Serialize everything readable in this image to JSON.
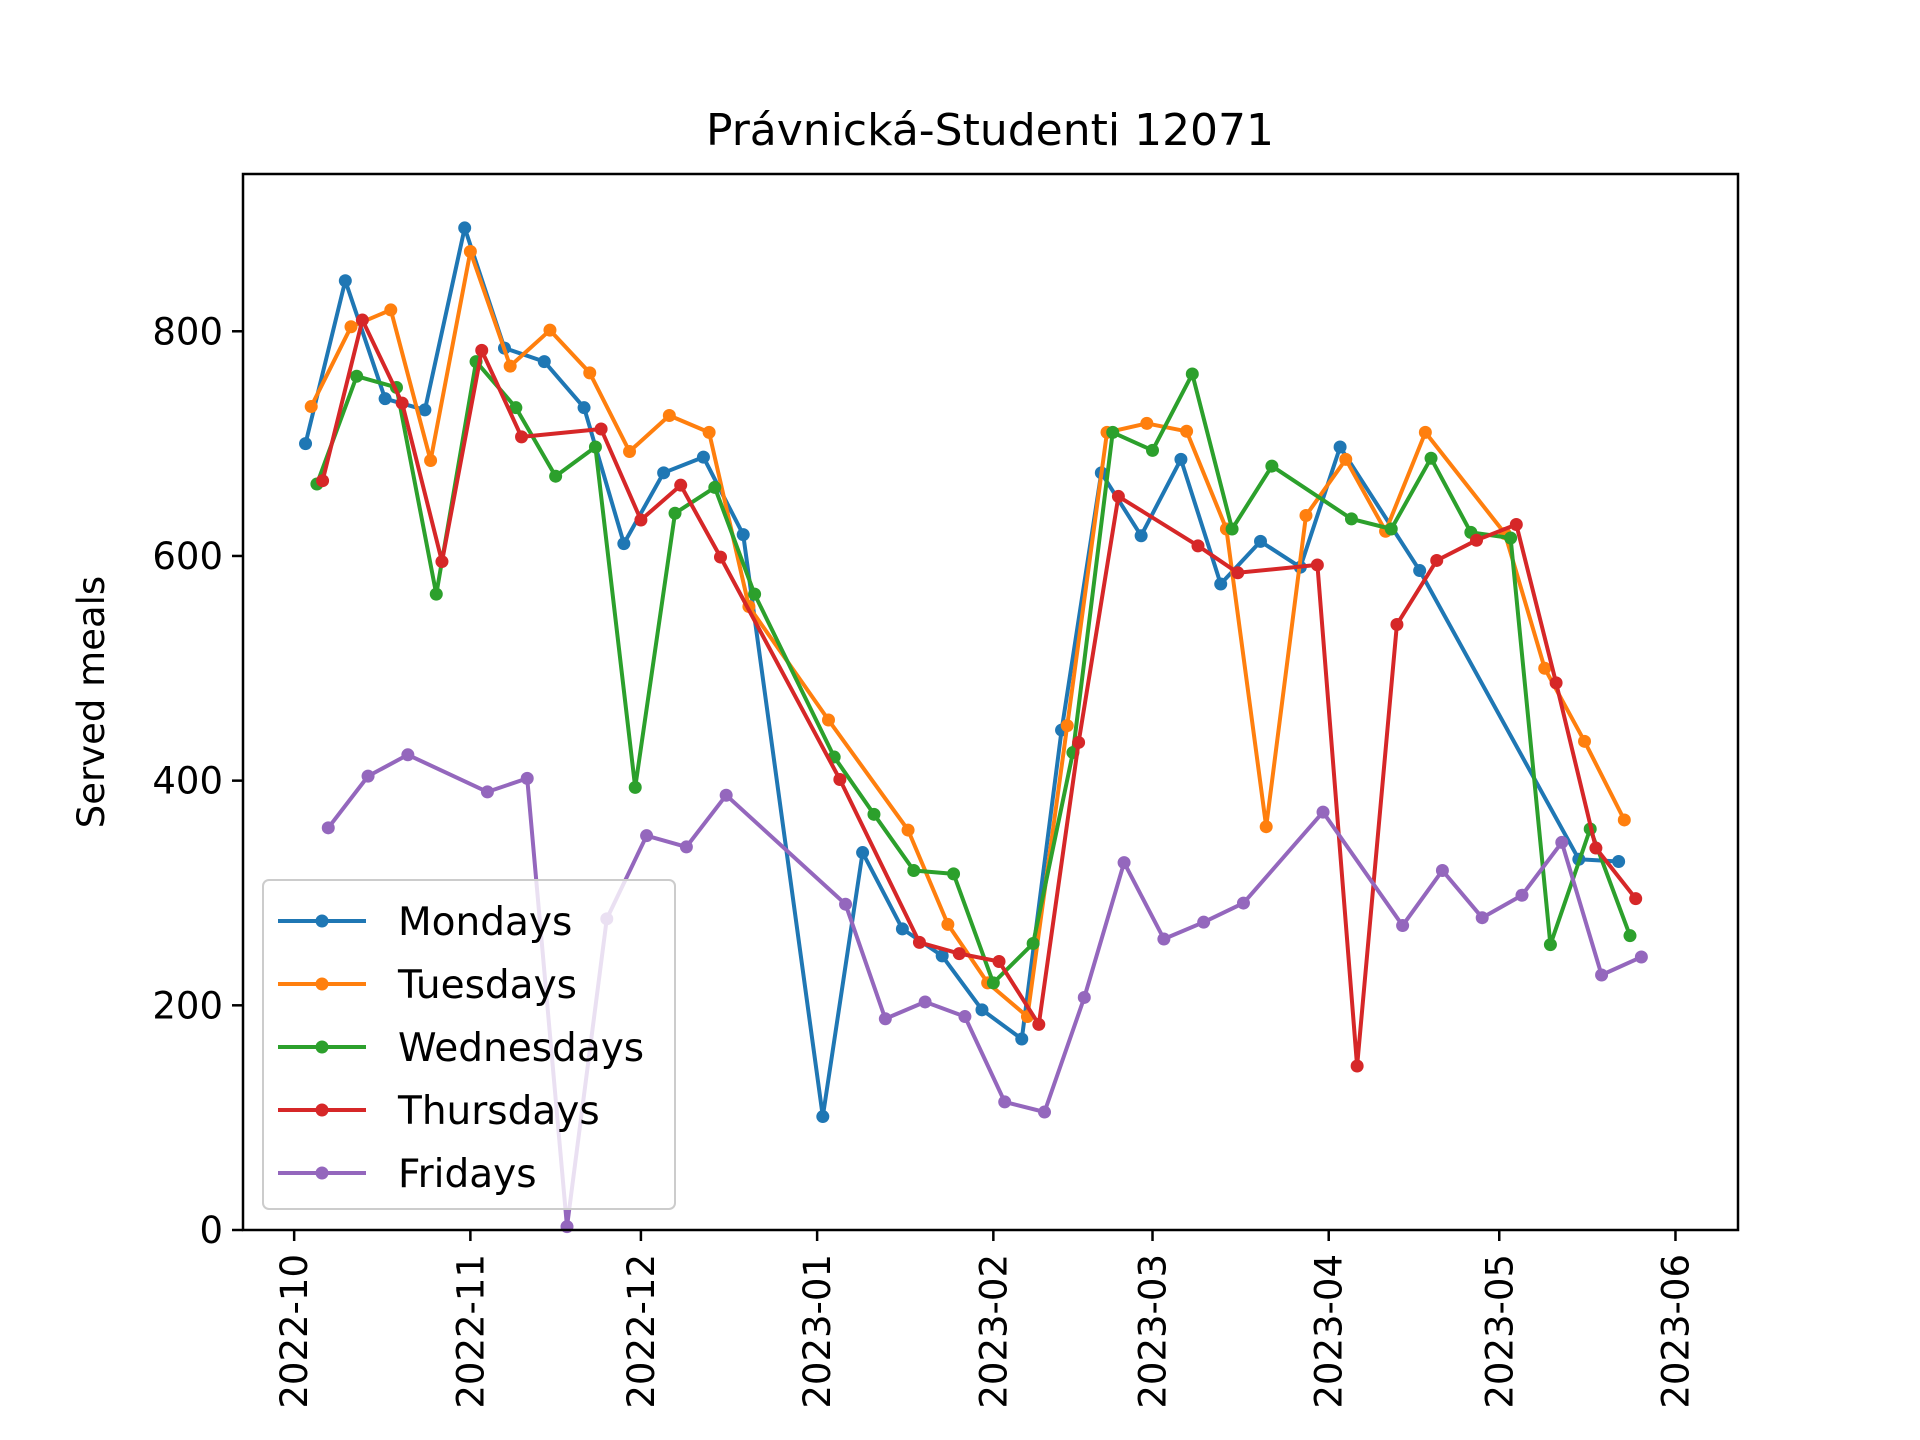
{
  "chart_data": {
    "type": "line",
    "title": "Právnická-Studenti 12071",
    "xlabel": "",
    "ylabel": "Served meals",
    "ylim": [
      0,
      940
    ],
    "xlim": [
      "2022-09-22",
      "2023-06-12"
    ],
    "grid": false,
    "legend_position": "lower-left",
    "yticks": [
      0,
      200,
      400,
      600,
      800
    ],
    "xticks": [
      "2022-10-01",
      "2022-11-01",
      "2022-12-01",
      "2023-01-01",
      "2023-02-01",
      "2023-03-01",
      "2023-04-01",
      "2023-05-01",
      "2023-06-01"
    ],
    "xtick_labels": [
      "2022-10",
      "2022-11",
      "2022-12",
      "2023-01",
      "2023-02",
      "2023-03",
      "2023-04",
      "2023-05",
      "2023-06"
    ],
    "series": [
      {
        "name": "Mondays",
        "color": "#1f77b4",
        "points": [
          [
            "2022-10-03",
            700
          ],
          [
            "2022-10-10",
            845
          ],
          [
            "2022-10-17",
            740
          ],
          [
            "2022-10-24",
            730
          ],
          [
            "2022-10-31",
            892
          ],
          [
            "2022-11-07",
            785
          ],
          [
            "2022-11-14",
            773
          ],
          [
            "2022-11-21",
            732
          ],
          [
            "2022-11-28",
            611
          ],
          [
            "2022-12-05",
            674
          ],
          [
            "2022-12-12",
            688
          ],
          [
            "2022-12-19",
            619
          ],
          [
            "2023-01-02",
            101
          ],
          [
            "2023-01-09",
            336
          ],
          [
            "2023-01-16",
            268
          ],
          [
            "2023-01-23",
            244
          ],
          [
            "2023-01-30",
            196
          ],
          [
            "2023-02-06",
            170
          ],
          [
            "2023-02-13",
            445
          ],
          [
            "2023-02-20",
            674
          ],
          [
            "2023-02-27",
            618
          ],
          [
            "2023-03-06",
            686
          ],
          [
            "2023-03-13",
            575
          ],
          [
            "2023-03-20",
            613
          ],
          [
            "2023-03-27",
            590
          ],
          [
            "2023-04-03",
            697
          ],
          [
            "2023-04-17",
            587
          ],
          [
            "2023-05-15",
            330
          ],
          [
            "2023-05-22",
            328
          ]
        ]
      },
      {
        "name": "Tuesdays",
        "color": "#ff7f0e",
        "points": [
          [
            "2022-10-04",
            733
          ],
          [
            "2022-10-11",
            804
          ],
          [
            "2022-10-18",
            819
          ],
          [
            "2022-10-25",
            685
          ],
          [
            "2022-11-01",
            871
          ],
          [
            "2022-11-08",
            769
          ],
          [
            "2022-11-15",
            801
          ],
          [
            "2022-11-22",
            763
          ],
          [
            "2022-11-29",
            693
          ],
          [
            "2022-12-06",
            725
          ],
          [
            "2022-12-13",
            710
          ],
          [
            "2022-12-20",
            555
          ],
          [
            "2023-01-03",
            454
          ],
          [
            "2023-01-17",
            356
          ],
          [
            "2023-01-24",
            272
          ],
          [
            "2023-01-31",
            220
          ],
          [
            "2023-02-07",
            190
          ],
          [
            "2023-02-14",
            449
          ],
          [
            "2023-02-21",
            710
          ],
          [
            "2023-02-28",
            718
          ],
          [
            "2023-03-07",
            711
          ],
          [
            "2023-03-14",
            624
          ],
          [
            "2023-03-21",
            359
          ],
          [
            "2023-03-28",
            636
          ],
          [
            "2023-04-04",
            686
          ],
          [
            "2023-04-11",
            622
          ],
          [
            "2023-04-18",
            710
          ],
          [
            "2023-05-02",
            620
          ],
          [
            "2023-05-09",
            500
          ],
          [
            "2023-05-16",
            435
          ],
          [
            "2023-05-23",
            365
          ]
        ]
      },
      {
        "name": "Wednesdays",
        "color": "#2ca02c",
        "points": [
          [
            "2022-10-05",
            664
          ],
          [
            "2022-10-12",
            760
          ],
          [
            "2022-10-19",
            750
          ],
          [
            "2022-10-26",
            566
          ],
          [
            "2022-11-02",
            773
          ],
          [
            "2022-11-09",
            732
          ],
          [
            "2022-11-16",
            671
          ],
          [
            "2022-11-23",
            697
          ],
          [
            "2022-11-30",
            394
          ],
          [
            "2022-12-07",
            638
          ],
          [
            "2022-12-14",
            661
          ],
          [
            "2022-12-21",
            566
          ],
          [
            "2023-01-04",
            421
          ],
          [
            "2023-01-11",
            370
          ],
          [
            "2023-01-18",
            320
          ],
          [
            "2023-01-25",
            317
          ],
          [
            "2023-02-01",
            220
          ],
          [
            "2023-02-08",
            255
          ],
          [
            "2023-02-15",
            425
          ],
          [
            "2023-02-22",
            710
          ],
          [
            "2023-03-01",
            694
          ],
          [
            "2023-03-08",
            762
          ],
          [
            "2023-03-15",
            624
          ],
          [
            "2023-03-22",
            680
          ],
          [
            "2023-04-05",
            633
          ],
          [
            "2023-04-12",
            624
          ],
          [
            "2023-04-19",
            687
          ],
          [
            "2023-04-26",
            621
          ],
          [
            "2023-05-03",
            616
          ],
          [
            "2023-05-10",
            254
          ],
          [
            "2023-05-17",
            357
          ],
          [
            "2023-05-24",
            262
          ]
        ]
      },
      {
        "name": "Thursdays",
        "color": "#d62728",
        "points": [
          [
            "2022-10-06",
            667
          ],
          [
            "2022-10-13",
            810
          ],
          [
            "2022-10-20",
            736
          ],
          [
            "2022-10-27",
            595
          ],
          [
            "2022-11-03",
            783
          ],
          [
            "2022-11-10",
            706
          ],
          [
            "2022-11-24",
            713
          ],
          [
            "2022-12-01",
            632
          ],
          [
            "2022-12-08",
            663
          ],
          [
            "2022-12-15",
            599
          ],
          [
            "2023-01-05",
            401
          ],
          [
            "2023-01-19",
            256
          ],
          [
            "2023-01-26",
            246
          ],
          [
            "2023-02-02",
            239
          ],
          [
            "2023-02-09",
            183
          ],
          [
            "2023-02-16",
            434
          ],
          [
            "2023-02-23",
            653
          ],
          [
            "2023-03-09",
            609
          ],
          [
            "2023-03-16",
            585
          ],
          [
            "2023-03-30",
            592
          ],
          [
            "2023-04-06",
            146
          ],
          [
            "2023-04-13",
            539
          ],
          [
            "2023-04-20",
            596
          ],
          [
            "2023-04-27",
            614
          ],
          [
            "2023-05-04",
            628
          ],
          [
            "2023-05-11",
            487
          ],
          [
            "2023-05-18",
            340
          ],
          [
            "2023-05-25",
            295
          ]
        ]
      },
      {
        "name": "Fridays",
        "color": "#9467bd",
        "points": [
          [
            "2022-10-07",
            358
          ],
          [
            "2022-10-14",
            404
          ],
          [
            "2022-10-21",
            423
          ],
          [
            "2022-11-04",
            390
          ],
          [
            "2022-11-11",
            402
          ],
          [
            "2022-11-18",
            3
          ],
          [
            "2022-11-25",
            277
          ],
          [
            "2022-12-02",
            351
          ],
          [
            "2022-12-09",
            341
          ],
          [
            "2022-12-16",
            387
          ],
          [
            "2023-01-06",
            290
          ],
          [
            "2023-01-13",
            188
          ],
          [
            "2023-01-20",
            203
          ],
          [
            "2023-01-27",
            190
          ],
          [
            "2023-02-03",
            114
          ],
          [
            "2023-02-10",
            105
          ],
          [
            "2023-02-17",
            207
          ],
          [
            "2023-02-24",
            327
          ],
          [
            "2023-03-03",
            259
          ],
          [
            "2023-03-10",
            274
          ],
          [
            "2023-03-17",
            291
          ],
          [
            "2023-03-31",
            372
          ],
          [
            "2023-04-14",
            271
          ],
          [
            "2023-04-21",
            320
          ],
          [
            "2023-04-28",
            278
          ],
          [
            "2023-05-05",
            298
          ],
          [
            "2023-05-12",
            345
          ],
          [
            "2023-05-19",
            227
          ],
          [
            "2023-05-26",
            243
          ]
        ]
      }
    ]
  }
}
